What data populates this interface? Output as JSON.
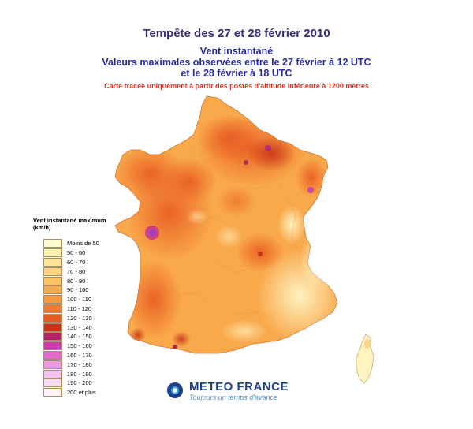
{
  "header": {
    "title": "Tempête des 27 et 28 février 2010",
    "subtitle_1": "Vent instantané",
    "subtitle_2": "Valeurs maximales observées  entre le 27 février à 12 UTC",
    "subtitle_3": "et le 28 février à 18 UTC",
    "note": "Carte tracée uniquement à partir des postes d'altitude inférieure à 1200 mètres"
  },
  "legend": {
    "title_line1": "Vent instantané maximum",
    "title_line2": "(km/h)",
    "items": [
      {
        "label": "Moins de 50",
        "color": "#fffbd0"
      },
      {
        "label": "50 - 60",
        "color": "#fff0b0"
      },
      {
        "label": "60 - 70",
        "color": "#ffe595"
      },
      {
        "label": "70 - 80",
        "color": "#ffd47c"
      },
      {
        "label": "80 - 90",
        "color": "#fcc467"
      },
      {
        "label": "90 - 100",
        "color": "#f9ac4f"
      },
      {
        "label": "100 - 110",
        "color": "#f79a3f"
      },
      {
        "label": "110 - 120",
        "color": "#f07a2c"
      },
      {
        "label": "120 - 130",
        "color": "#e55a20"
      },
      {
        "label": "130 - 140",
        "color": "#cf2f16"
      },
      {
        "label": "140 - 150",
        "color": "#b7226a"
      },
      {
        "label": "150 - 160",
        "color": "#d23ab0"
      },
      {
        "label": "160 - 170",
        "color": "#e16ad0"
      },
      {
        "label": "170 - 180",
        "color": "#ec9ae2"
      },
      {
        "label": "180 - 190",
        "color": "#f3c2ee"
      },
      {
        "label": "190 - 200",
        "color": "#f8dcf6"
      },
      {
        "label": "200 et plus",
        "color": "#fcf0fb"
      }
    ]
  },
  "footer": {
    "brand": "METEO FRANCE",
    "tagline": "Toujours un temps d'avance"
  }
}
